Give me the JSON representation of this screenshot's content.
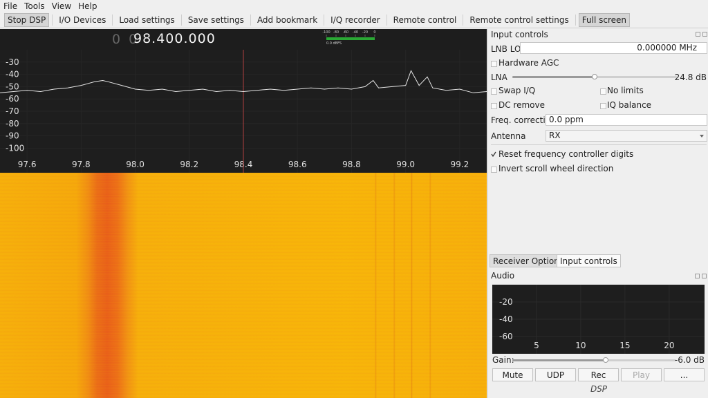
{
  "menu": [
    "File",
    "Tools",
    "View",
    "Help"
  ],
  "toolbar": [
    "Stop DSP",
    "I/O Devices",
    "Load settings",
    "Save settings",
    "Add bookmark",
    "I/Q recorder",
    "Remote control",
    "Remote control settings",
    "Full screen"
  ],
  "frequency": {
    "leading": "0 0",
    "value": "98.400.000"
  },
  "meter": {
    "ticks": [
      -100,
      -80,
      -60,
      -40,
      -20,
      0
    ],
    "level_label": "0.0 dBFS"
  },
  "spectrum": {
    "type": "line",
    "color": "#e6e6e6",
    "marker_color": "#b04040",
    "marker": 98.4,
    "xlim": [
      97.5,
      99.3
    ],
    "ylim": [
      -120,
      -20
    ],
    "xticks": [
      97.6,
      97.8,
      {
        "value": 98,
        "label": "98.0"
      },
      98.2,
      98.4,
      98.6,
      98.8,
      {
        "value": 99,
        "label": "99.0"
      },
      99.2
    ],
    "yticks": [
      -30,
      -40,
      -50,
      -60,
      -70,
      -80,
      -90,
      -100
    ],
    "x": [
      97.5,
      97.55,
      97.6,
      97.65,
      97.7,
      97.75,
      97.8,
      97.85,
      97.88,
      97.9,
      97.95,
      98.0,
      98.05,
      98.1,
      98.15,
      98.2,
      98.25,
      98.3,
      98.35,
      98.4,
      98.45,
      98.5,
      98.55,
      98.6,
      98.65,
      98.7,
      98.75,
      98.8,
      98.85,
      98.88,
      98.9,
      98.95,
      99.0,
      99.02,
      99.05,
      99.08,
      99.1,
      99.15,
      99.2,
      99.25,
      99.3
    ],
    "values": [
      -55,
      -54,
      -53,
      -54,
      -52,
      -51,
      -49,
      -46,
      -45,
      -46,
      -49,
      -52,
      -53,
      -52,
      -54,
      -53,
      -52,
      -54,
      -53,
      -54,
      -53,
      -52,
      -53,
      -52,
      -51,
      -52,
      -51,
      -52,
      -50,
      -45,
      -51,
      -50,
      -49,
      -37,
      -49,
      -42,
      -51,
      -53,
      -52,
      -55,
      -54
    ]
  },
  "input_controls": {
    "title": "Input controls",
    "lnb_lo_label": "LNB LO",
    "lnb_lo_value": "0.000000 MHz",
    "hardware_agc": "Hardware AGC",
    "lna_label": "LNA",
    "lna_value": "24.8 dB",
    "swap_iq": "Swap I/Q",
    "no_limits": "No limits",
    "dc_remove": "DC remove",
    "iq_balance": "IQ balance",
    "freq_correction_label": "Freq. correction",
    "freq_correction_value": "0.0 ppm",
    "antenna_label": "Antenna",
    "antenna_value": "RX",
    "reset_digits": "Reset frequency controller digits",
    "invert_scroll": "Invert scroll wheel direction"
  },
  "tabs": [
    "Receiver Options",
    "Input controls"
  ],
  "audio": {
    "title": "Audio",
    "xlim": [
      0,
      24
    ],
    "ylim": [
      -80,
      0
    ],
    "xticks": [
      5,
      10,
      15,
      20
    ],
    "yticks": [
      -20,
      -40,
      -60
    ],
    "gain_label": "Gain:",
    "gain_value": "-6.0 dB",
    "buttons": [
      "Mute",
      "UDP",
      "Rec",
      "Play",
      "..."
    ]
  },
  "dsp_label": "DSP"
}
